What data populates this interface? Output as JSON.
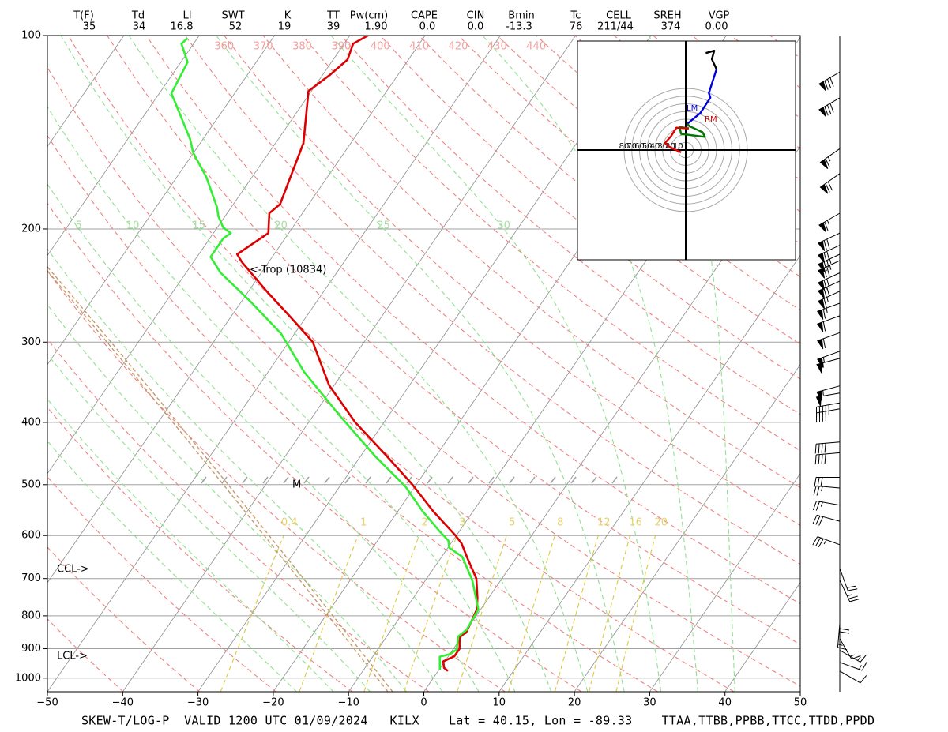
{
  "chart_data": {
    "type": "skewt",
    "indices": {
      "labels": [
        "T(F)",
        "Td",
        "LI",
        "SWT",
        "K",
        "TT",
        "Pw(cm)",
        "CAPE",
        "CIN",
        "Bmin",
        "Tc",
        "CELL",
        "SREH",
        "VGP"
      ],
      "values": [
        "35",
        "34",
        "16.8",
        "52",
        "19",
        "39",
        "1.90",
        "0.0",
        "0.0",
        "-13.3",
        "76",
        "211/44",
        "374",
        "0.00"
      ]
    },
    "footer": "SKEW-T/LOG-P  VALID 1200 UTC 01/09/2024   KILX    Lat = 40.15, Lon = -89.33    TTAA,TTBB,PPBB,TTCC,TTDD,PPDD",
    "ylog": true,
    "grid": true,
    "ylim": [
      1050,
      100
    ],
    "yticks": [
      100,
      200,
      300,
      400,
      500,
      600,
      700,
      800,
      900,
      1000
    ],
    "xlim": [
      -50,
      50
    ],
    "xticks": [
      {
        "value": -50,
        "label": "−50"
      },
      {
        "value": -40,
        "label": "−40"
      },
      {
        "value": -30,
        "label": "−30"
      },
      {
        "value": -20,
        "label": "−20"
      },
      {
        "value": -10,
        "label": "−10"
      },
      0,
      10,
      20,
      30,
      40,
      50
    ],
    "isotherms": [
      -100,
      -90,
      -80,
      -70,
      -60,
      -50,
      -40,
      -30,
      -20,
      -10,
      0,
      10,
      20,
      30,
      40,
      50
    ],
    "dry_adiabats": [
      220,
      230,
      240,
      250,
      260,
      270,
      280,
      290,
      300,
      310,
      320,
      330,
      340,
      350,
      360,
      370,
      380,
      390,
      400,
      410,
      420,
      430,
      440,
      450,
      460,
      470,
      480,
      490,
      500,
      510
    ],
    "dry_adiabat_labels": [
      360,
      370,
      380,
      390,
      400,
      410,
      420,
      430,
      440
    ],
    "moist_adiabats": [
      -20,
      -15,
      -10,
      -5,
      0,
      5,
      10,
      15,
      20,
      25,
      30,
      35,
      40
    ],
    "moist_adiabat_labels": [
      5,
      10,
      15,
      20,
      25,
      30
    ],
    "mixing_ratios": [
      0.4,
      1,
      2,
      3,
      5,
      8,
      12,
      16,
      20
    ],
    "series": [
      {
        "color": "#dd0000",
        "pressure": [
          975,
          964,
          942,
          925,
          900,
          861,
          850,
          800,
          782,
          750,
          700,
          650,
          617,
          600,
          550,
          500,
          450,
          400,
          350,
          300,
          275,
          250,
          225,
          219,
          203,
          189,
          183,
          147,
          122,
          115,
          109,
          103,
          100
        ],
        "values": [
          1.3,
          0.5,
          -0.2,
          0.8,
          0.8,
          -0.3,
          0.2,
          -0.3,
          -0.5,
          -1.5,
          -3.4,
          -6.5,
          -8.6,
          -10.1,
          -15.3,
          -20.5,
          -26.7,
          -33.8,
          -40.7,
          -46.8,
          -51.9,
          -57.6,
          -63.6,
          -64.9,
          -62.7,
          -64.4,
          -63.8,
          -66.3,
          -70.4,
          -69.0,
          -68.1,
          -68.8,
          -67.6
        ]
      },
      {
        "color": "#33ee33",
        "pressure": [
          970,
          926,
          918,
          903,
          861,
          841,
          782,
          704,
          647,
          627,
          611,
          589,
          550,
          503,
          452,
          391,
          334,
          291,
          259,
          234,
          221,
          207,
          203,
          199,
          191,
          185,
          166,
          152,
          145,
          123,
          110,
          103,
          101
        ],
        "values": [
          0.1,
          -1.1,
          0.0,
          0.5,
          -0.5,
          0.0,
          -0.3,
          -3.8,
          -7.3,
          -9.8,
          -10.6,
          -12.8,
          -16.7,
          -21.3,
          -28.0,
          -36.4,
          -45.2,
          -51.8,
          -58.9,
          -65.4,
          -68.2,
          -68.2,
          -67.7,
          -69.2,
          -70.9,
          -71.9,
          -76.1,
          -80.1,
          -81.7,
          -88.4,
          -89.1,
          -91.6,
          -91.3
        ]
      }
    ],
    "annotations": [
      "<-Trop (10834)",
      "CCL->",
      "LCL->",
      "M"
    ],
    "winds": {
      "pressure": [
        114,
        125,
        150,
        164,
        189,
        203,
        212,
        219,
        224,
        234,
        241,
        250,
        261,
        273,
        290,
        310,
        318,
        351,
        360,
        373,
        381,
        429,
        446,
        487,
        506,
        538,
        570,
        620,
        675,
        704,
        778,
        823,
        868,
        905,
        945,
        975
      ],
      "direction": [
        240,
        240,
        235,
        235,
        240,
        245,
        245,
        245,
        245,
        245,
        245,
        245,
        250,
        250,
        250,
        250,
        255,
        255,
        260,
        260,
        260,
        265,
        265,
        270,
        275,
        280,
        285,
        290,
        160,
        155,
        180,
        185,
        150,
        120,
        110,
        120
      ],
      "speed": [
        80,
        80,
        65,
        70,
        65,
        70,
        70,
        75,
        75,
        70,
        70,
        65,
        65,
        60,
        60,
        55,
        55,
        55,
        50,
        45,
        45,
        40,
        40,
        30,
        25,
        25,
        30,
        35,
        20,
        25,
        20,
        15,
        15,
        15,
        15,
        10
      ]
    },
    "hodograph": {
      "rings": [
        10,
        20,
        30,
        40,
        50,
        60,
        70,
        80
      ],
      "labels": [
        "LM",
        "RM"
      ],
      "segments": [
        {
          "color": "#000000",
          "u": [
            26,
            37,
            34,
            40
          ],
          "v": [
            126,
            129,
            118,
            105
          ]
        },
        {
          "color": "#0000dd",
          "u": [
            40,
            30,
            32,
            19,
            2
          ],
          "v": [
            105,
            74,
            68,
            48,
            34
          ]
        },
        {
          "color": "#007700",
          "u": [
            2,
            5,
            22,
            25,
            -6,
            -8,
            4
          ],
          "v": [
            34,
            31,
            23,
            17,
            21,
            30,
            28
          ]
        },
        {
          "color": "#dd0000",
          "u": [
            4,
            -12,
            -19,
            -27,
            -21,
            -6
          ],
          "v": [
            28,
            29,
            18,
            9,
            4,
            -3
          ]
        }
      ]
    }
  }
}
